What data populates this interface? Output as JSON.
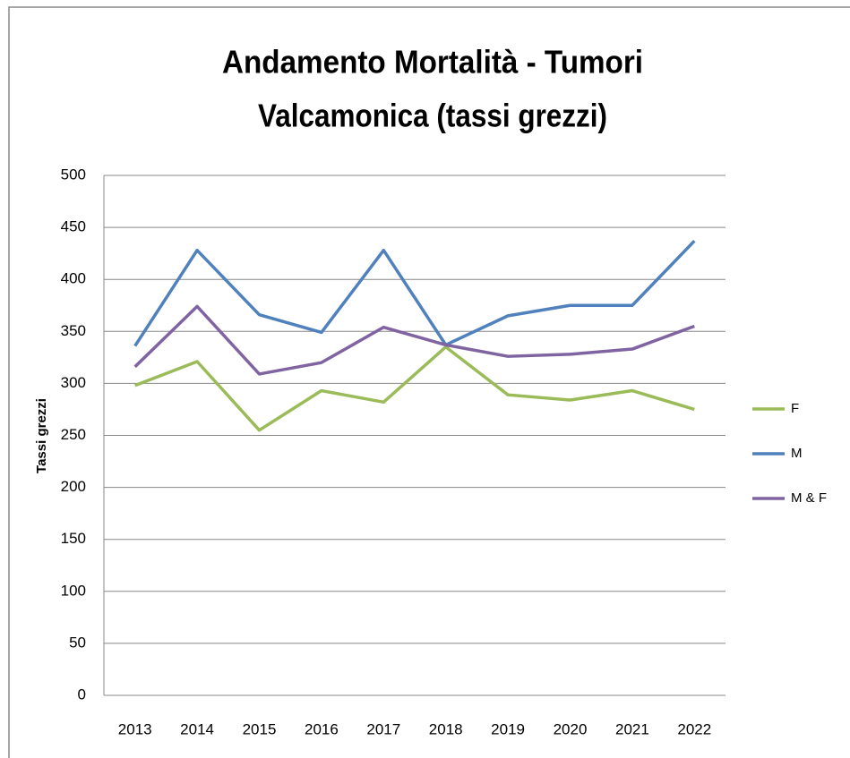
{
  "chart_data": {
    "type": "line",
    "title": [
      "Andamento Mortalità - Tumori",
      "Valcamonica (tassi grezzi)"
    ],
    "y_label": "Tassi grezzi",
    "categories": [
      "2013",
      "2014",
      "2015",
      "2016",
      "2017",
      "2018",
      "2019",
      "2020",
      "2021",
      "2022"
    ],
    "series": [
      {
        "name": "F",
        "color": "#9bbb59",
        "values": [
          298,
          321,
          255,
          293,
          282,
          335,
          289,
          284,
          293,
          275
        ]
      },
      {
        "name": "M",
        "color": "#4f81bd",
        "values": [
          336,
          428,
          366,
          349,
          428,
          337,
          365,
          375,
          375,
          437
        ]
      },
      {
        "name": "M & F",
        "color": "#8064a2",
        "values": [
          316,
          374,
          309,
          320,
          354,
          337,
          326,
          328,
          333,
          355
        ]
      }
    ],
    "ylim": [
      0,
      500
    ],
    "yticks": [
      0,
      50,
      100,
      150,
      200,
      250,
      300,
      350,
      400,
      450,
      500
    ],
    "grid": true,
    "legend": "right"
  }
}
